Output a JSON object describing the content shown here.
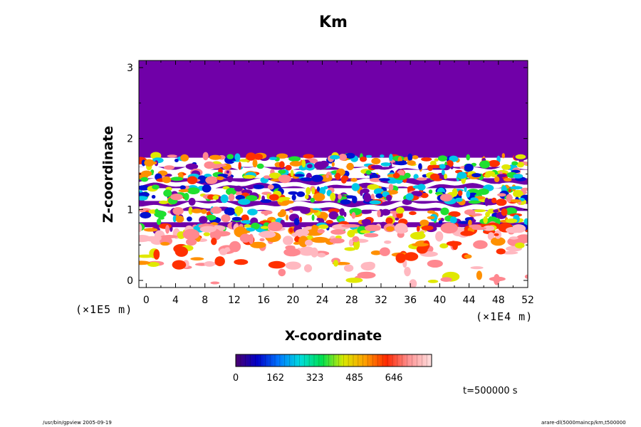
{
  "chart_data": {
    "type": "heatmap",
    "title": "Km",
    "xlabel": "X-coordinate",
    "ylabel": "Z-coordinate",
    "x_unit": "(×1E4 m)",
    "y_unit": "(×1E5 m)",
    "xlim": [
      -1,
      52
    ],
    "ylim": [
      -0.1,
      3.1
    ],
    "x_ticks": [
      "0",
      "4",
      "8",
      "12",
      "16",
      "20",
      "24",
      "28",
      "32",
      "36",
      "40",
      "44",
      "48",
      "52"
    ],
    "x_tick_values": [
      0,
      4,
      8,
      12,
      16,
      20,
      24,
      28,
      32,
      36,
      40,
      44,
      48,
      52
    ],
    "y_ticks": [
      "0",
      "1",
      "2",
      "3"
    ],
    "y_tick_values": [
      0,
      1,
      2,
      3
    ],
    "colorbar": {
      "ticks": [
        "0",
        "162",
        "323",
        "485",
        "646"
      ],
      "tick_values": [
        0,
        162,
        323,
        485,
        646
      ],
      "range": [
        0,
        800
      ],
      "colors": [
        "#4b0070",
        "#0000c8",
        "#0078ff",
        "#00dcdc",
        "#00e050",
        "#d8e800",
        "#ffa000",
        "#ff2800",
        "#ff9090",
        "#ffe0e0"
      ]
    },
    "time_label": "t=500000 s",
    "regions": [
      {
        "desc": "uniform low value",
        "z_range": [
          1.75,
          3.1
        ],
        "value": 0
      },
      {
        "desc": "layered high-value bands",
        "z_range": [
          0.85,
          1.75
        ],
        "value_range": [
          0,
          800
        ]
      },
      {
        "desc": "patchy moderate values",
        "z_range": [
          -0.1,
          0.85
        ],
        "value_range": [
          500,
          800
        ]
      }
    ]
  },
  "footer": {
    "left": "/usr/bin/gpview 2005-09-19",
    "right": "arare-dl(5000maincp/km,t500000"
  }
}
